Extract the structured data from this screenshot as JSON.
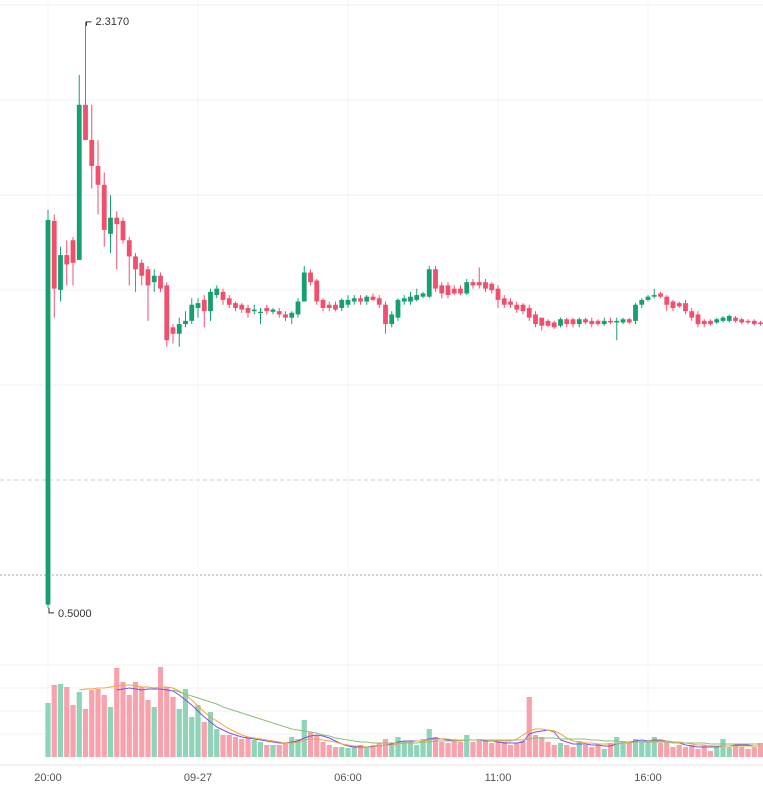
{
  "chart_data": {
    "type": "candlestick",
    "categories": [
      "20:00",
      null,
      null,
      null,
      null,
      null,
      null,
      null,
      null,
      null,
      null,
      null,
      null,
      null,
      null,
      null,
      null,
      null,
      null,
      null,
      null,
      null,
      null,
      null,
      "09-27",
      null,
      null,
      null,
      null,
      null,
      null,
      null,
      null,
      null,
      null,
      null,
      null,
      null,
      null,
      null,
      null,
      null,
      null,
      null,
      null,
      null,
      null,
      null,
      "06:00",
      null,
      null,
      null,
      null,
      null,
      null,
      null,
      null,
      null,
      null,
      null,
      null,
      null,
      null,
      null,
      null,
      null,
      null,
      null,
      null,
      null,
      null,
      null,
      "11:00",
      null,
      null,
      null,
      null,
      null,
      null,
      null,
      null,
      null,
      null,
      null,
      null,
      null,
      null,
      null,
      null,
      null,
      null,
      null,
      null,
      null,
      null,
      null,
      "16:00",
      null,
      null,
      null,
      null,
      null,
      null,
      null,
      null,
      null,
      null,
      null,
      null,
      null,
      null,
      null,
      null,
      null,
      null
    ],
    "open": [
      0.51,
      1.7,
      1.486,
      1.594,
      1.64,
      1.579,
      2.06,
      1.951,
      1.87,
      1.812,
      1.66,
      1.71,
      1.7,
      1.64,
      1.59,
      1.57,
      1.55,
      1.51,
      1.53,
      1.5,
      1.37,
      1.35,
      1.38,
      1.39,
      1.43,
      1.455,
      1.42,
      1.47,
      1.48,
      1.46,
      1.445,
      1.44,
      1.43,
      1.42,
      1.414,
      1.43,
      1.418,
      1.42,
      1.41,
      1.4,
      1.41,
      1.45,
      1.54,
      1.515,
      1.455,
      1.44,
      1.44,
      1.43,
      1.44,
      1.45,
      1.46,
      1.45,
      1.465,
      1.46,
      1.44,
      1.38,
      1.4,
      1.45,
      1.45,
      1.455,
      1.465,
      1.465,
      1.55,
      1.5,
      1.5,
      1.49,
      1.49,
      1.475,
      1.51,
      1.51,
      1.51,
      1.505,
      1.49,
      1.46,
      1.45,
      1.44,
      1.44,
      1.43,
      1.41,
      1.4,
      1.39,
      1.385,
      1.375,
      1.395,
      1.395,
      1.38,
      1.395,
      1.39,
      1.39,
      1.38,
      1.39,
      1.385,
      1.385,
      1.395,
      1.39,
      1.44,
      1.455,
      1.465,
      1.475,
      1.465,
      1.45,
      1.445,
      1.445,
      1.42,
      1.41,
      1.39,
      1.39,
      1.385,
      1.39,
      1.39,
      1.4,
      1.395,
      1.39,
      1.39,
      1.385
    ],
    "high": [
      1.734,
      1.72,
      1.62,
      1.64,
      1.65,
      2.153,
      2.317,
      2.06,
      1.95,
      1.85,
      1.78,
      1.73,
      1.71,
      1.65,
      1.6,
      1.58,
      1.56,
      1.55,
      1.54,
      1.51,
      1.38,
      1.4,
      1.42,
      1.46,
      1.46,
      1.47,
      1.49,
      1.5,
      1.49,
      1.47,
      1.45,
      1.445,
      1.44,
      1.44,
      1.43,
      1.44,
      1.43,
      1.43,
      1.42,
      1.42,
      1.46,
      1.56,
      1.55,
      1.52,
      1.46,
      1.45,
      1.45,
      1.46,
      1.47,
      1.47,
      1.47,
      1.47,
      1.475,
      1.47,
      1.45,
      1.42,
      1.46,
      1.47,
      1.48,
      1.49,
      1.48,
      1.56,
      1.56,
      1.51,
      1.51,
      1.5,
      1.5,
      1.52,
      1.52,
      1.556,
      1.52,
      1.51,
      1.5,
      1.47,
      1.46,
      1.45,
      1.445,
      1.44,
      1.42,
      1.4,
      1.395,
      1.39,
      1.4,
      1.4,
      1.4,
      1.4,
      1.4,
      1.4,
      1.395,
      1.4,
      1.4,
      1.4,
      1.4,
      1.4,
      1.445,
      1.46,
      1.47,
      1.49,
      1.48,
      1.47,
      1.455,
      1.45,
      1.455,
      1.43,
      1.42,
      1.395,
      1.395,
      1.4,
      1.405,
      1.41,
      1.405,
      1.4,
      1.395,
      1.395,
      1.39
    ],
    "low": [
      0.5,
      1.4,
      1.45,
      1.5,
      1.5,
      1.579,
      1.95,
      1.8,
      1.72,
      1.62,
      1.6,
      1.55,
      1.63,
      1.5,
      1.48,
      1.5,
      1.39,
      1.48,
      1.48,
      1.31,
      1.32,
      1.31,
      1.37,
      1.38,
      1.4,
      1.37,
      1.39,
      1.46,
      1.44,
      1.43,
      1.42,
      1.415,
      1.4,
      1.41,
      1.38,
      1.41,
      1.41,
      1.4,
      1.39,
      1.38,
      1.4,
      1.45,
      1.5,
      1.44,
      1.42,
      1.42,
      1.42,
      1.42,
      1.43,
      1.44,
      1.44,
      1.44,
      1.45,
      1.43,
      1.35,
      1.37,
      1.39,
      1.44,
      1.44,
      1.45,
      1.46,
      1.46,
      1.48,
      1.46,
      1.46,
      1.47,
      1.47,
      1.47,
      1.49,
      1.49,
      1.48,
      1.475,
      1.43,
      1.43,
      1.43,
      1.415,
      1.41,
      1.39,
      1.37,
      1.36,
      1.37,
      1.365,
      1.37,
      1.37,
      1.37,
      1.37,
      1.38,
      1.37,
      1.375,
      1.375,
      1.38,
      1.33,
      1.38,
      1.38,
      1.38,
      1.43,
      1.45,
      1.46,
      1.46,
      1.42,
      1.42,
      1.43,
      1.41,
      1.39,
      1.37,
      1.37,
      1.375,
      1.38,
      1.385,
      1.385,
      1.385,
      1.38,
      1.38,
      1.375,
      1.375
    ],
    "close": [
      1.703,
      1.49,
      1.594,
      1.565,
      1.57,
      2.06,
      1.951,
      1.87,
      1.812,
      1.672,
      1.71,
      1.69,
      1.64,
      1.59,
      1.55,
      1.53,
      1.5,
      1.53,
      1.49,
      1.33,
      1.35,
      1.38,
      1.39,
      1.44,
      1.445,
      1.42,
      1.48,
      1.49,
      1.455,
      1.44,
      1.43,
      1.425,
      1.415,
      1.425,
      1.418,
      1.42,
      1.425,
      1.41,
      1.4,
      1.415,
      1.45,
      1.54,
      1.51,
      1.45,
      1.43,
      1.43,
      1.425,
      1.455,
      1.455,
      1.46,
      1.45,
      1.465,
      1.455,
      1.44,
      1.38,
      1.41,
      1.455,
      1.46,
      1.465,
      1.47,
      1.475,
      1.55,
      1.49,
      1.475,
      1.47,
      1.475,
      1.475,
      1.51,
      1.5,
      1.5,
      1.49,
      1.485,
      1.455,
      1.44,
      1.44,
      1.425,
      1.42,
      1.4,
      1.38,
      1.375,
      1.375,
      1.37,
      1.395,
      1.38,
      1.38,
      1.395,
      1.385,
      1.38,
      1.38,
      1.39,
      1.385,
      1.39,
      1.395,
      1.385,
      1.44,
      1.455,
      1.465,
      1.47,
      1.465,
      1.44,
      1.43,
      1.435,
      1.42,
      1.4,
      1.38,
      1.38,
      1.38,
      1.395,
      1.4,
      1.405,
      1.39,
      1.385,
      1.385,
      1.38,
      1.38
    ],
    "up_color": "#16a06e",
    "down_color": "#f0506e",
    "ylim": [
      0.45,
      2.385
    ],
    "max_label": "2.3170",
    "min_label": "0.5000",
    "volume": {
      "values": [
        54,
        72,
        73,
        70,
        52,
        65,
        48,
        67,
        68,
        62,
        50,
        89,
        75,
        62,
        75,
        70,
        57,
        50,
        90,
        70,
        60,
        48,
        68,
        40,
        52,
        35,
        45,
        28,
        22,
        22,
        20,
        18,
        20,
        17,
        15,
        12,
        12,
        12,
        14,
        20,
        18,
        37,
        25,
        22,
        15,
        12,
        10,
        10,
        9,
        10,
        12,
        10,
        10,
        14,
        18,
        14,
        20,
        16,
        15,
        12,
        18,
        28,
        20,
        15,
        14,
        18,
        15,
        22,
        15,
        18,
        16,
        14,
        15,
        15,
        12,
        14,
        16,
        60,
        22,
        20,
        15,
        12,
        14,
        12,
        10,
        16,
        12,
        10,
        12,
        8,
        14,
        20,
        16,
        14,
        18,
        16,
        17,
        20,
        14,
        15,
        10,
        12,
        10,
        12,
        8,
        12,
        6,
        10,
        18,
        10,
        12,
        10,
        8,
        10,
        14
      ],
      "ylim": [
        0,
        100
      ],
      "up_color": "#8fd3b9",
      "down_color": "#f7a2ad"
    },
    "moving_averages": [
      {
        "color": "#7b52e8",
        "values": [
          null,
          null,
          null,
          null,
          null,
          null,
          null,
          null,
          null,
          null,
          null,
          67,
          68,
          69,
          68,
          67,
          68,
          68,
          68,
          67,
          66,
          62,
          57,
          52,
          46,
          40,
          35,
          30,
          27,
          24,
          22,
          20,
          19,
          18,
          17,
          16,
          15,
          14,
          14,
          15,
          16,
          19,
          21,
          22,
          21,
          19,
          16,
          13,
          11,
          10,
          10,
          10,
          11,
          11,
          12,
          13,
          15,
          16,
          16,
          16,
          16,
          18,
          19,
          18,
          17,
          17,
          17,
          17,
          17,
          17,
          16,
          16,
          15,
          14,
          14,
          14,
          15,
          23,
          25,
          26,
          27,
          25,
          17,
          15,
          13,
          13,
          13,
          12,
          12,
          11,
          11,
          13,
          14,
          15,
          16,
          17,
          16,
          17,
          17,
          16,
          15,
          14,
          12,
          11,
          10,
          10,
          10,
          10,
          11,
          11,
          12,
          12,
          12,
          11,
          11
        ]
      },
      {
        "color": "#f0a640",
        "values": [
          null,
          null,
          null,
          null,
          null,
          67,
          68,
          68,
          69,
          69,
          70,
          71,
          72,
          72,
          71,
          70,
          70,
          69,
          70,
          70,
          69,
          66,
          62,
          57,
          51,
          45,
          40,
          36,
          32,
          28,
          25,
          22,
          20,
          19,
          18,
          17,
          16,
          15,
          14,
          14,
          15,
          17,
          18,
          18,
          17,
          16,
          15,
          13,
          12,
          11,
          11,
          10,
          10,
          11,
          12,
          12,
          13,
          14,
          15,
          16,
          16,
          17,
          18,
          18,
          18,
          17,
          17,
          17,
          17,
          17,
          17,
          16,
          16,
          16,
          16,
          18,
          22,
          26,
          28,
          28,
          27,
          26,
          23,
          19,
          16,
          15,
          14,
          14,
          13,
          13,
          13,
          13,
          14,
          14,
          15,
          15,
          16,
          16,
          16,
          16,
          15,
          15,
          14,
          13,
          12,
          12,
          11,
          11,
          11,
          11,
          11,
          11,
          11,
          11,
          11
        ]
      },
      {
        "color": "#8cc079",
        "values": [
          null,
          null,
          null,
          null,
          null,
          null,
          null,
          null,
          null,
          null,
          null,
          null,
          null,
          null,
          null,
          null,
          null,
          null,
          null,
          null,
          67,
          65,
          63,
          61,
          59,
          57,
          55,
          53,
          50,
          48,
          46,
          44,
          42,
          40,
          38,
          36,
          34,
          32,
          30,
          28,
          27,
          26,
          25,
          24,
          22,
          21,
          19,
          18,
          17,
          16,
          15,
          15,
          14,
          14,
          14,
          14,
          14,
          14,
          14,
          14,
          15,
          15,
          16,
          16,
          16,
          16,
          16,
          17,
          17,
          17,
          17,
          17,
          17,
          17,
          17,
          17,
          17,
          18,
          19,
          19,
          19,
          19,
          18,
          18,
          18,
          18,
          18,
          17,
          17,
          16,
          16,
          16,
          15,
          15,
          15,
          15,
          15,
          15,
          15,
          15,
          14,
          14,
          14,
          14,
          14,
          14,
          13,
          13,
          13,
          13,
          13,
          13,
          13,
          13,
          13
        ]
      }
    ]
  }
}
